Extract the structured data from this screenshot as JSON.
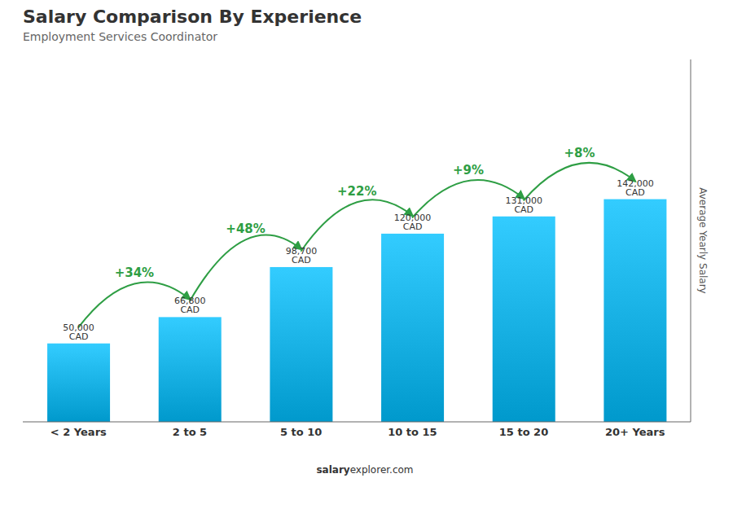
{
  "chart_data": {
    "type": "bar",
    "title": "Salary Comparison By Experience",
    "subtitle": "Employment Services Coordinator",
    "categories": [
      "< 2 Years",
      "2 to 5",
      "5 to 10",
      "10 to 15",
      "15 to 20",
      "20+ Years"
    ],
    "values": [
      50000,
      66800,
      98700,
      120000,
      131000,
      142000
    ],
    "value_labels": [
      "50,000 CAD",
      "66,800 CAD",
      "98,700 CAD",
      "120,000 CAD",
      "131,000 CAD",
      "142,000 CAD"
    ],
    "data_labels": true,
    "annotations": [
      "+34%",
      "+48%",
      "+22%",
      "+9%",
      "+8%"
    ],
    "ylabel": "Average Yearly Salary",
    "footer": "salaryexplorer.com",
    "footer_bold": "salary",
    "ylim": [
      0,
      231105
    ],
    "tick_labels": "x",
    "grid": false
  }
}
